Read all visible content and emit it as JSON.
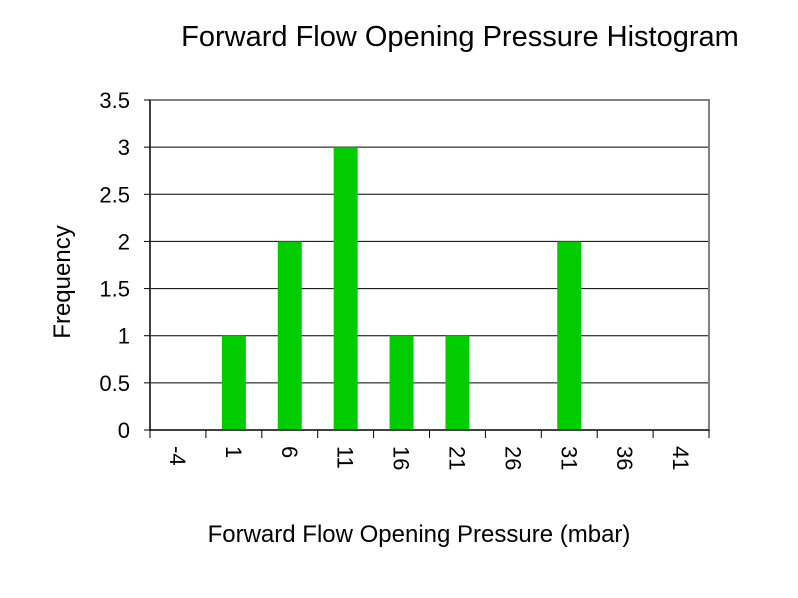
{
  "chart_data": {
    "type": "bar",
    "title": "Forward Flow Opening Pressure Histogram",
    "xlabel": "Forward Flow Opening Pressure (mbar)",
    "ylabel": "Frequency",
    "categories": [
      "-4",
      "1",
      "6",
      "11",
      "16",
      "21",
      "26",
      "31",
      "36",
      "41"
    ],
    "values": [
      0,
      1,
      2,
      3,
      1,
      1,
      0,
      2,
      0,
      0
    ],
    "ylim": [
      0,
      3.5
    ],
    "yticks": [
      "0",
      "0.5",
      "1",
      "1.5",
      "2",
      "2.5",
      "3",
      "3.5"
    ],
    "grid": true,
    "legend": "none",
    "bar_color": "#00cc00"
  }
}
